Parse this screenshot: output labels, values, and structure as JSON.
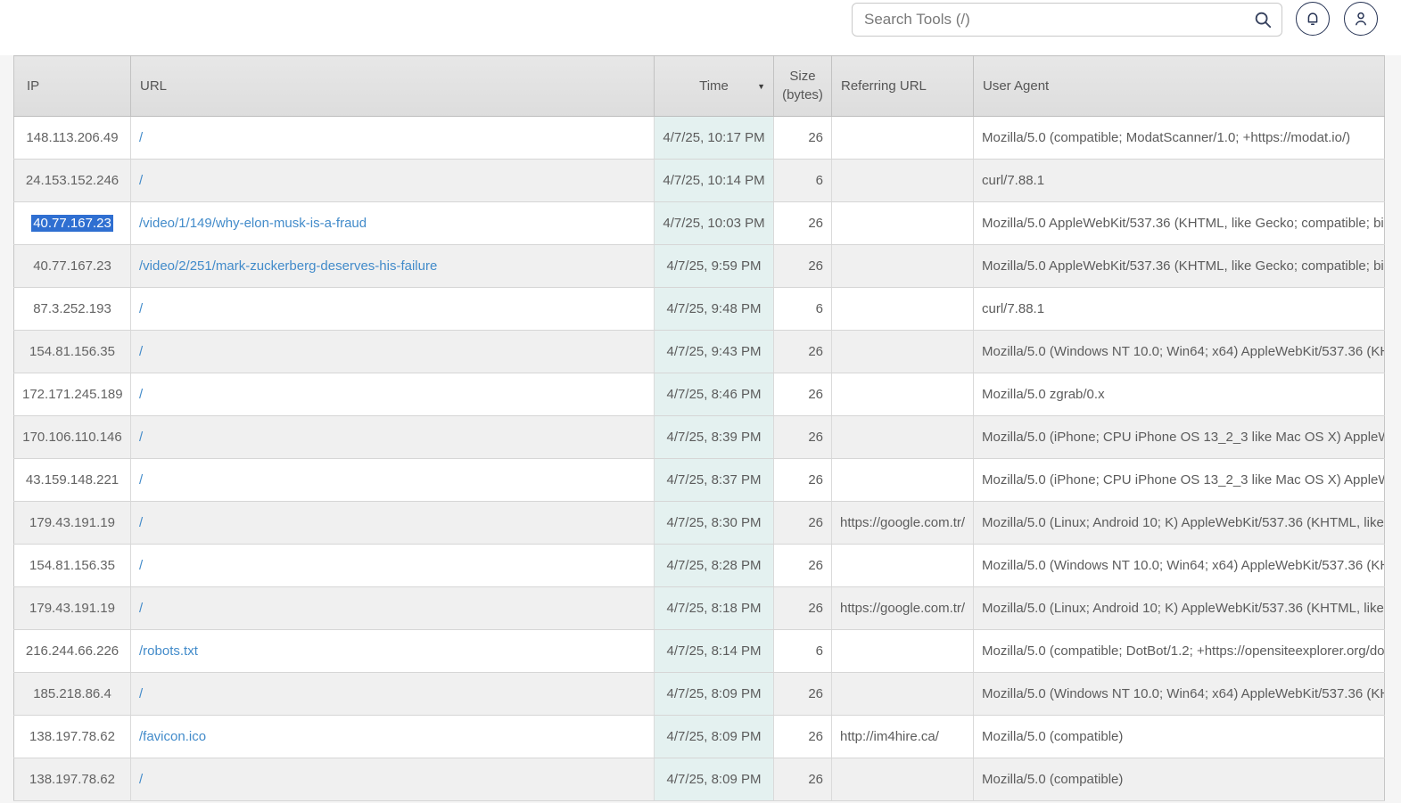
{
  "topbar": {
    "search": {
      "placeholder": "Search Tools (/)",
      "value": ""
    },
    "icons": {
      "search": "magnifier-icon",
      "notifications": "bell-icon",
      "account": "person-icon"
    }
  },
  "colors": {
    "link": "#428bca",
    "selection_bg": "#2f6fd1",
    "time_column_bg": "#e4f1f0",
    "alt_row_bg": "#f0f0f0",
    "header_bg": "#e0e0e0",
    "icon_stroke": "#263354"
  },
  "table": {
    "columns": [
      {
        "key": "ip",
        "label": "IP"
      },
      {
        "key": "url",
        "label": "URL"
      },
      {
        "key": "time",
        "label": "Time",
        "sorted": "desc"
      },
      {
        "key": "size",
        "label": "Size (bytes)"
      },
      {
        "key": "referrer",
        "label": "Referring URL"
      },
      {
        "key": "user_agent",
        "label": "User Agent"
      }
    ],
    "rows": [
      {
        "ip": "148.113.206.49",
        "url": "/",
        "time": "4/7/25, 10:17 PM",
        "size": "26",
        "referrer": "",
        "user_agent": "Mozilla/5.0 (compatible; ModatScanner/1.0; +https://modat.io/)"
      },
      {
        "ip": "24.153.152.246",
        "url": "/",
        "time": "4/7/25, 10:14 PM",
        "size": "6",
        "referrer": "",
        "user_agent": "curl/7.88.1"
      },
      {
        "ip": "40.77.167.23",
        "ip_selected": true,
        "url": "/video/1/149/why-elon-musk-is-a-fraud",
        "time": "4/7/25, 10:03 PM",
        "size": "26",
        "referrer": "",
        "user_agent": "Mozilla/5.0 AppleWebKit/537.36 (KHTML, like Gecko; compatible; bi"
      },
      {
        "ip": "40.77.167.23",
        "url": "/video/2/251/mark-zuckerberg-deserves-his-failure",
        "time": "4/7/25, 9:59 PM",
        "size": "26",
        "referrer": "",
        "user_agent": "Mozilla/5.0 AppleWebKit/537.36 (KHTML, like Gecko; compatible; bi"
      },
      {
        "ip": "87.3.252.193",
        "url": "/",
        "time": "4/7/25, 9:48 PM",
        "size": "6",
        "referrer": "",
        "user_agent": "curl/7.88.1"
      },
      {
        "ip": "154.81.156.35",
        "url": "/",
        "time": "4/7/25, 9:43 PM",
        "size": "26",
        "referrer": "",
        "user_agent": "Mozilla/5.0 (Windows NT 10.0; Win64; x64) AppleWebKit/537.36 (KH"
      },
      {
        "ip": "172.171.245.189",
        "url": "/",
        "time": "4/7/25, 8:46 PM",
        "size": "26",
        "referrer": "",
        "user_agent": "Mozilla/5.0 zgrab/0.x"
      },
      {
        "ip": "170.106.110.146",
        "url": "/",
        "time": "4/7/25, 8:39 PM",
        "size": "26",
        "referrer": "",
        "user_agent": "Mozilla/5.0 (iPhone; CPU iPhone OS 13_2_3 like Mac OS X) AppleW"
      },
      {
        "ip": "43.159.148.221",
        "url": "/",
        "time": "4/7/25, 8:37 PM",
        "size": "26",
        "referrer": "",
        "user_agent": "Mozilla/5.0 (iPhone; CPU iPhone OS 13_2_3 like Mac OS X) AppleW"
      },
      {
        "ip": "179.43.191.19",
        "url": "/",
        "time": "4/7/25, 8:30 PM",
        "size": "26",
        "referrer": "https://google.com.tr/",
        "user_agent": "Mozilla/5.0 (Linux; Android 10; K) AppleWebKit/537.36 (KHTML, like"
      },
      {
        "ip": "154.81.156.35",
        "url": "/",
        "time": "4/7/25, 8:28 PM",
        "size": "26",
        "referrer": "",
        "user_agent": "Mozilla/5.0 (Windows NT 10.0; Win64; x64) AppleWebKit/537.36 (KH"
      },
      {
        "ip": "179.43.191.19",
        "url": "/",
        "time": "4/7/25, 8:18 PM",
        "size": "26",
        "referrer": "https://google.com.tr/",
        "user_agent": "Mozilla/5.0 (Linux; Android 10; K) AppleWebKit/537.36 (KHTML, like"
      },
      {
        "ip": "216.244.66.226",
        "url": "/robots.txt",
        "time": "4/7/25, 8:14 PM",
        "size": "6",
        "referrer": "",
        "user_agent": "Mozilla/5.0 (compatible; DotBot/1.2; +https://opensiteexplorer.org/do"
      },
      {
        "ip": "185.218.86.4",
        "url": "/",
        "time": "4/7/25, 8:09 PM",
        "size": "26",
        "referrer": "",
        "user_agent": "Mozilla/5.0 (Windows NT 10.0; Win64; x64) AppleWebKit/537.36 (KH"
      },
      {
        "ip": "138.197.78.62",
        "url": "/favicon.ico",
        "time": "4/7/25, 8:09 PM",
        "size": "26",
        "referrer": "http://im4hire.ca/",
        "user_agent": "Mozilla/5.0 (compatible)"
      },
      {
        "ip": "138.197.78.62",
        "url": "/",
        "time": "4/7/25, 8:09 PM",
        "size": "26",
        "referrer": "",
        "user_agent": "Mozilla/5.0 (compatible)"
      }
    ]
  }
}
